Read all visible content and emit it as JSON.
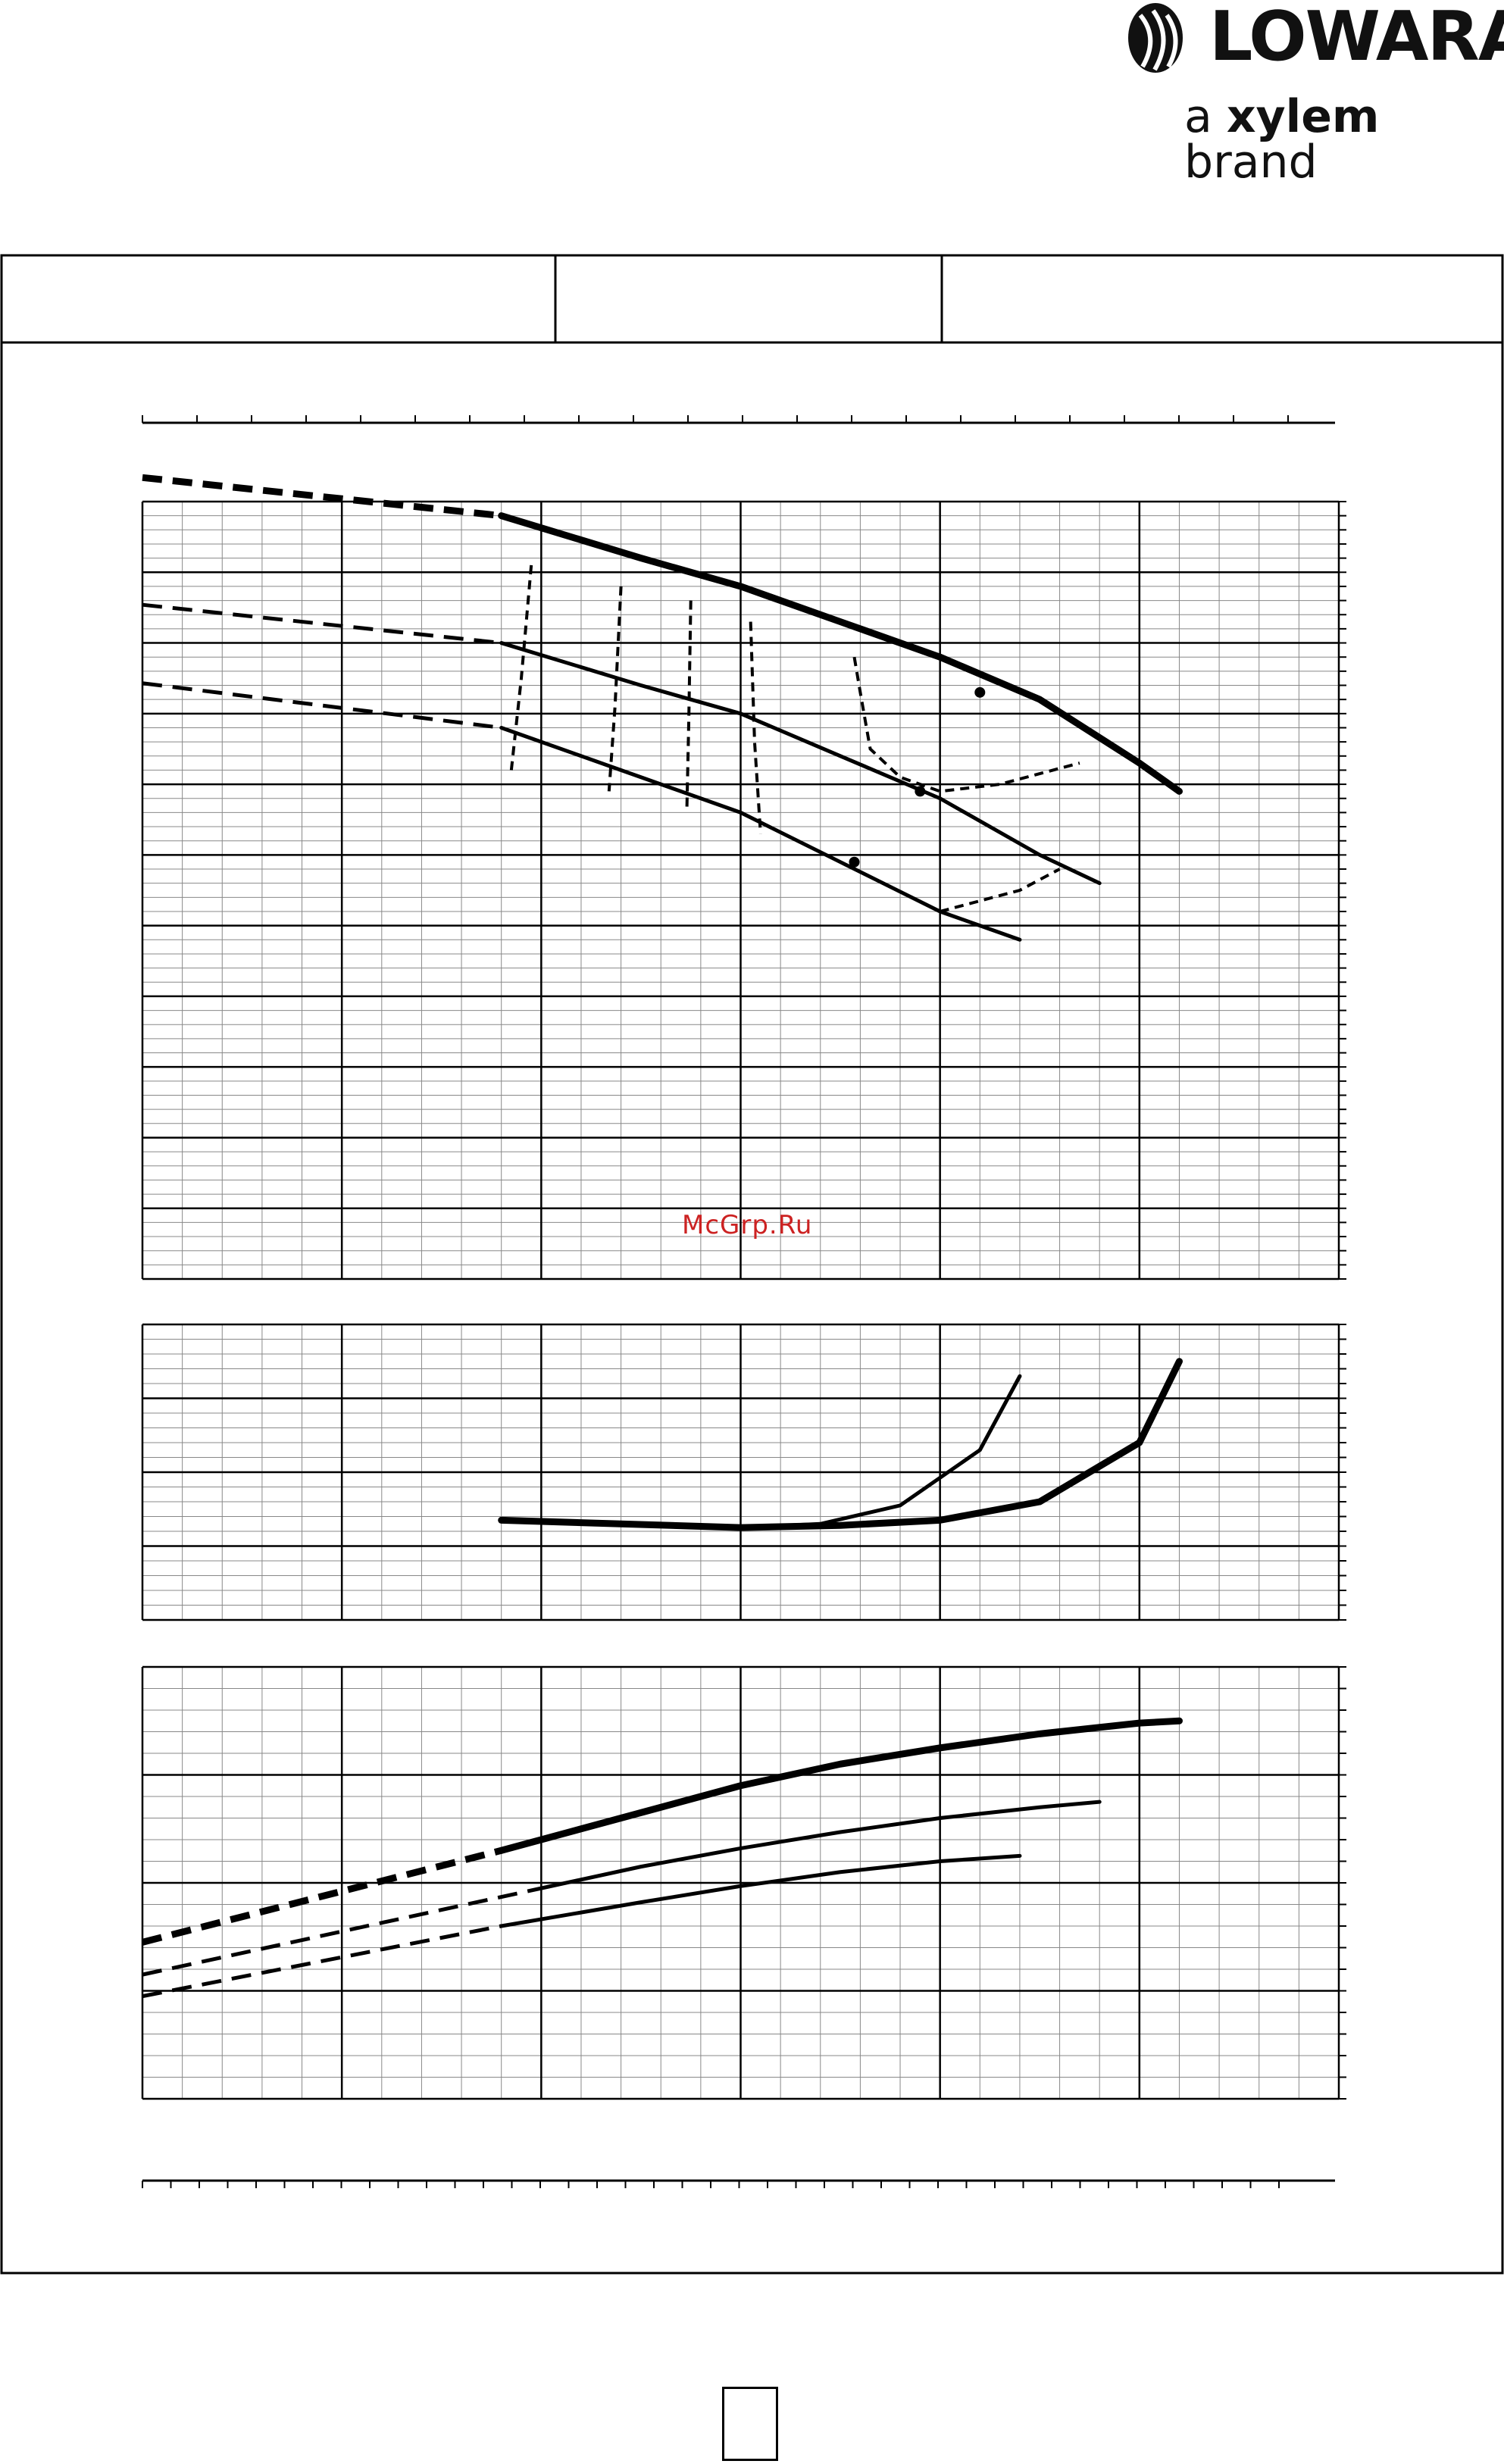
{
  "header": {
    "brand_name": "LOWARA",
    "tagline_prefix": "a ",
    "tagline_brand": "xylem",
    "tagline_suffix": " brand"
  },
  "watermark": "McGrp.Ru",
  "chart_data": [
    {
      "type": "line",
      "panel": "head",
      "x_range": [
        0,
        6
      ],
      "y_range": [
        0,
        11
      ],
      "grid": true,
      "series": [
        {
          "dashed_x": [
            0,
            1.8
          ],
          "x": [
            1.8,
            2.5,
            3.0,
            3.5,
            4.0,
            4.5,
            5.0,
            5.2
          ],
          "y": [
            10.8,
            10.2,
            9.8,
            9.3,
            8.8,
            8.2,
            7.3,
            6.9
          ],
          "weight": "heavy"
        },
        {
          "dashed_x": [
            0,
            1.8
          ],
          "x": [
            1.8,
            2.5,
            3.0,
            3.5,
            4.0,
            4.5,
            4.8
          ],
          "y": [
            9.0,
            8.4,
            8.0,
            7.4,
            6.8,
            6.0,
            5.6
          ],
          "weight": "light"
        },
        {
          "dashed_x": [
            0,
            1.8
          ],
          "x": [
            1.8,
            2.5,
            3.0,
            3.5,
            4.0,
            4.4
          ],
          "y": [
            7.8,
            7.1,
            6.6,
            5.9,
            5.2,
            4.8
          ],
          "weight": "light"
        }
      ],
      "iso_lines": [
        {
          "x": [
            1.95,
            1.9,
            1.85
          ],
          "y": [
            10.1,
            8.5,
            7.2
          ]
        },
        {
          "x": [
            2.4,
            2.37,
            2.34
          ],
          "y": [
            9.8,
            8.1,
            6.9
          ]
        },
        {
          "x": [
            2.75,
            2.74,
            2.73
          ],
          "y": [
            9.6,
            7.9,
            6.6
          ]
        },
        {
          "x": [
            3.05,
            3.07,
            3.1
          ],
          "y": [
            9.3,
            7.6,
            6.3
          ]
        },
        {
          "x": [
            3.57,
            3.6,
            3.65,
            3.8,
            4.0,
            4.3,
            4.7
          ],
          "y": [
            8.8,
            8.3,
            7.5,
            7.1,
            6.9,
            7.0,
            7.3
          ]
        },
        {
          "x": [
            4.0,
            4.4,
            4.6
          ],
          "y": [
            5.2,
            5.5,
            5.8
          ]
        }
      ],
      "markers": [
        {
          "x": 4.2,
          "y": 8.3
        },
        {
          "x": 3.9,
          "y": 6.9
        },
        {
          "x": 3.57,
          "y": 5.9
        }
      ]
    },
    {
      "type": "line",
      "panel": "npsh",
      "x_range": [
        0,
        6
      ],
      "y_range": [
        0,
        4
      ],
      "grid": true,
      "series": [
        {
          "x": [
            1.8,
            2.4,
            3.0,
            3.5,
            4.0,
            4.5,
            5.0,
            5.2
          ],
          "y": [
            1.35,
            1.3,
            1.25,
            1.28,
            1.35,
            1.6,
            2.4,
            3.5
          ],
          "weight": "heavy"
        },
        {
          "x": [
            1.8,
            2.4,
            3.0,
            3.4,
            3.8,
            4.2,
            4.4
          ],
          "y": [
            1.35,
            1.3,
            1.25,
            1.3,
            1.55,
            2.3,
            3.3
          ],
          "weight": "light"
        }
      ]
    },
    {
      "type": "line",
      "panel": "power",
      "x_range": [
        0,
        6
      ],
      "y_range": [
        0,
        4
      ],
      "grid": true,
      "series": [
        {
          "dashed_x": [
            0,
            1.8
          ],
          "x": [
            0,
            1.8,
            2.5,
            3.0,
            3.5,
            4.0,
            4.5,
            5.0,
            5.2
          ],
          "y": [
            1.45,
            2.3,
            2.65,
            2.9,
            3.1,
            3.25,
            3.38,
            3.48,
            3.5
          ],
          "weight": "heavy"
        },
        {
          "dashed_x": [
            0,
            2.0
          ],
          "x": [
            0,
            1.0,
            2.0,
            2.5,
            3.0,
            3.5,
            4.0,
            4.5,
            4.8
          ],
          "y": [
            1.15,
            1.5,
            1.95,
            2.15,
            2.32,
            2.47,
            2.6,
            2.7,
            2.75
          ],
          "weight": "light"
        },
        {
          "dashed_x": [
            0,
            1.8
          ],
          "x": [
            0,
            1.0,
            1.8,
            2.5,
            3.0,
            3.5,
            4.0,
            4.4
          ],
          "y": [
            0.95,
            1.25,
            1.6,
            1.82,
            1.97,
            2.1,
            2.2,
            2.25
          ],
          "weight": "light"
        }
      ]
    }
  ]
}
